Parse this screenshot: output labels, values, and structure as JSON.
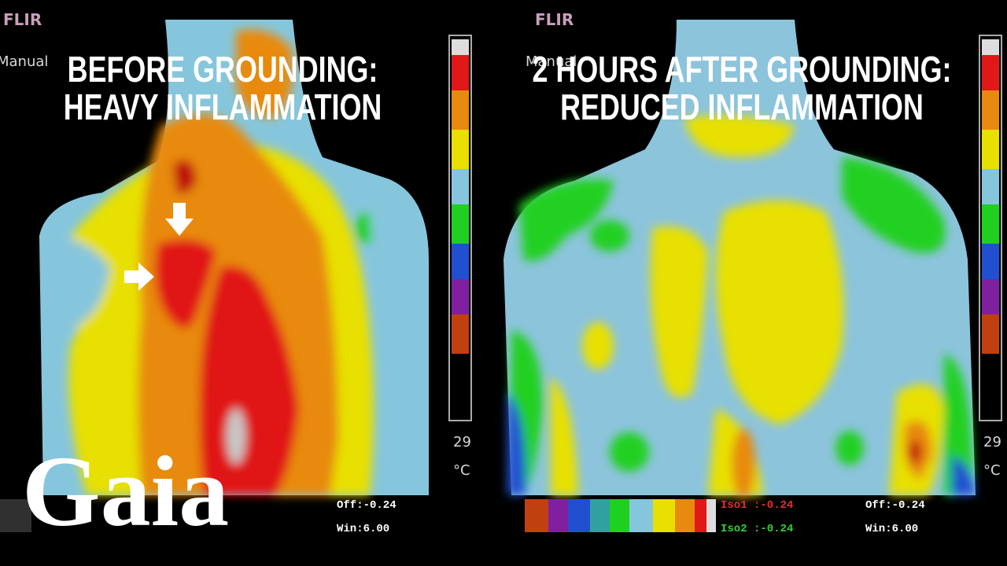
{
  "left": {
    "brand": "FLIR",
    "mode": "Manual",
    "title": [
      "BEFORE GROUNDING:",
      "HEAVY INFLAMMATION"
    ],
    "scale_min": "29",
    "unit": "°C",
    "off": "Off:-0.24",
    "win": "Win:6.00"
  },
  "right": {
    "brand": "FLIR",
    "mode": "Manual",
    "title": [
      "2 HOURS AFTER GROUNDING:",
      "REDUCED INFLAMMATION"
    ],
    "scale_min": "29",
    "unit": "°C",
    "iso1": "Iso1 :-0.24",
    "iso2": "Iso2 :-0.24",
    "off": "Off:-0.24",
    "win": "Win:6.00"
  },
  "logo": "Gaia"
}
